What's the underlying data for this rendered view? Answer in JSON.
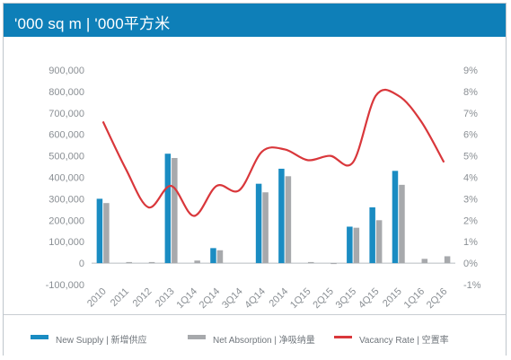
{
  "header": {
    "title": "'000 sq m | '000平方米"
  },
  "colors": {
    "header_bg": "#0e7fb8",
    "new_supply": "#1a8cc2",
    "net_absorption": "#a7a9ac",
    "vacancy_rate": "#d9373b"
  },
  "legend": [
    {
      "id": "new-supply",
      "label": "New Supply | 新增供应",
      "icon": "bar-swatch"
    },
    {
      "id": "net-absorption",
      "label": "Net Absorption | 净吸纳量",
      "icon": "bar-swatch"
    },
    {
      "id": "vacancy-rate",
      "label": "Vacancy Rate | 空置率",
      "icon": "line-swatch"
    }
  ],
  "chart_data": {
    "type": "bar",
    "categories": [
      "2010",
      "2011",
      "2012",
      "2013",
      "1Q14",
      "2Q14",
      "3Q14",
      "4Q14",
      "2014",
      "1Q15",
      "2Q15",
      "3Q15",
      "4Q15",
      "2015",
      "1Q16",
      "2Q16"
    ],
    "series": [
      {
        "name": "New Supply | 新增供应",
        "axis": "left",
        "type": "bar",
        "values": [
          300000,
          0,
          0,
          510000,
          0,
          70000,
          0,
          370000,
          440000,
          0,
          0,
          170000,
          260000,
          430000,
          0,
          0
        ]
      },
      {
        "name": "Net Absorption | 净吸纳量",
        "axis": "left",
        "type": "bar",
        "values": [
          280000,
          5000,
          5000,
          490000,
          12000,
          60000,
          0,
          330000,
          405000,
          5000,
          -3000,
          165000,
          200000,
          365000,
          20000,
          32000
        ]
      },
      {
        "name": "Vacancy Rate | 空置率",
        "axis": "right",
        "type": "line",
        "values": [
          6.6,
          4.4,
          2.6,
          3.6,
          2.2,
          3.6,
          3.4,
          5.2,
          5.3,
          4.8,
          5.0,
          4.7,
          7.8,
          7.8,
          6.6,
          4.7
        ]
      }
    ],
    "y_left": {
      "min": -100000,
      "max": 900000,
      "step": 100000,
      "tick_labels": [
        "-100,000",
        "0",
        "100,000",
        "200,000",
        "300,000",
        "400,000",
        "500,000",
        "600,000",
        "700,000",
        "800,000",
        "900,000"
      ]
    },
    "y_right": {
      "min": -1,
      "max": 9,
      "step": 1,
      "tick_labels": [
        "-1%",
        "0%",
        "1%",
        "2%",
        "3%",
        "4%",
        "5%",
        "6%",
        "7%",
        "8%",
        "9%"
      ]
    },
    "title": "",
    "xlabel": "",
    "ylabel": "",
    "legend_position": "bottom",
    "grid": false
  }
}
